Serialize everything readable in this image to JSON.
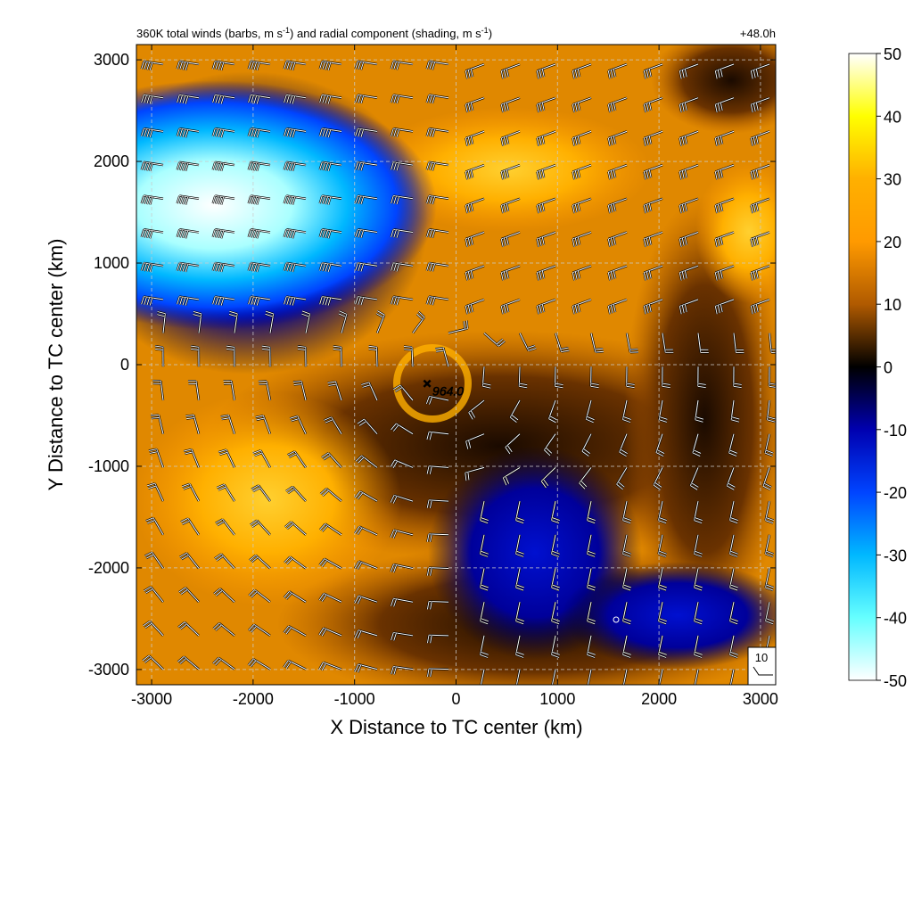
{
  "chart_data": {
    "type": "heatmap",
    "title": "360K total winds (barbs, m s",
    "title_sup1": "-1",
    "title_mid": ") and radial component (shading, m s",
    "title_sup2": "-1",
    "title_end": ")",
    "time_label": "+48.0h",
    "xlabel": "X Distance to TC center (km)",
    "ylabel": "Y Distance to TC center (km)",
    "xlim": [
      -3150,
      3150
    ],
    "ylim": [
      -3150,
      3150
    ],
    "x_ticks": [
      -3000,
      -2000,
      -1000,
      0,
      1000,
      2000,
      3000
    ],
    "y_ticks": [
      -3000,
      -2000,
      -1000,
      0,
      1000,
      2000,
      3000
    ],
    "x_tick_labels": [
      "-3000",
      "-2000",
      "-1000",
      "0",
      "1000",
      "2000",
      "3000"
    ],
    "y_tick_labels": [
      "-3000",
      "-2000",
      "-1000",
      "0",
      "1000",
      "2000",
      "3000"
    ],
    "grid": true,
    "colorbar": {
      "range": [
        -50,
        50
      ],
      "ticks": [
        50,
        40,
        30,
        20,
        10,
        0,
        -10,
        -20,
        -30,
        -40,
        -50
      ],
      "tick_labels": [
        "50",
        "40",
        "30",
        "20",
        "10",
        "0",
        "-10",
        "-20",
        "-30",
        "-40",
        "-50"
      ],
      "colors": [
        "#ffffff",
        "#ffff00",
        "#ffb000",
        "#ff9a00",
        "#b05a00",
        "#000000",
        "#0000b0",
        "#0044ff",
        "#00b8ff",
        "#66ffff",
        "#ffffff"
      ]
    },
    "center_marker": {
      "x": -250,
      "y": -250,
      "label": "964.0"
    },
    "reference_barb": {
      "speed": 10,
      "label": "10"
    },
    "field_features": [
      {
        "name": "strong inflow (negative) jet",
        "x": -2400,
        "y": 1500,
        "value": -50
      },
      {
        "name": "outflow (positive) region",
        "x": 1000,
        "y": 1800,
        "value": 20
      },
      {
        "name": "outflow (positive) region",
        "x": -1500,
        "y": -1500,
        "value": 18
      },
      {
        "name": "weak inflow (negative) region",
        "x": 800,
        "y": -2300,
        "value": -12
      }
    ]
  }
}
